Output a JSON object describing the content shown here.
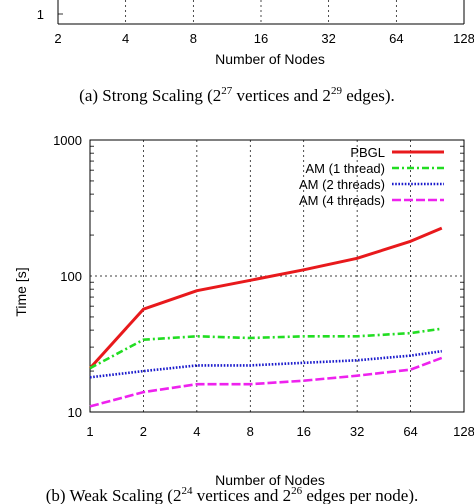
{
  "top_panel": {
    "y_tick_label": "1",
    "x_ticks": [
      "2",
      "4",
      "8",
      "16",
      "32",
      "64",
      "128"
    ],
    "xlabel": "Number of Nodes",
    "caption": {
      "prefix": "(a) Strong Scaling (2",
      "sup1": "27",
      "mid": " vertices and 2",
      "sup2": "29",
      "suffix": " edges)."
    }
  },
  "chart_data": {
    "type": "line",
    "title": "",
    "xlabel": "Number of Nodes",
    "ylabel": "Time [s]",
    "x_scale": "log2",
    "y_scale": "log10",
    "x_ticks": [
      1,
      2,
      4,
      8,
      16,
      32,
      64,
      128
    ],
    "x_tick_labels": [
      "1",
      "2",
      "4",
      "8",
      "16",
      "32",
      "64",
      "128"
    ],
    "y_ticks": [
      10,
      100,
      1000
    ],
    "y_tick_labels": [
      "10",
      "100",
      "1000"
    ],
    "xlim": [
      1,
      128
    ],
    "ylim": [
      10,
      1000
    ],
    "grid": true,
    "legend_position": "top-right",
    "x": [
      1,
      2,
      4,
      8,
      16,
      32,
      64,
      96
    ],
    "series": [
      {
        "name": "PBGL",
        "color": "#e8191c",
        "dash": "solid",
        "values": [
          21,
          57,
          78,
          93,
          111,
          135,
          180,
          225
        ]
      },
      {
        "name": "AM (1 thread)",
        "color": "#22dd22",
        "dash": "dashdot",
        "values": [
          21,
          34,
          36,
          35,
          36,
          36,
          38,
          41
        ]
      },
      {
        "name": "AM (2 threads)",
        "color": "#1a1acc",
        "dash": "dotted",
        "values": [
          18,
          20,
          22,
          22,
          23,
          24,
          26,
          28
        ]
      },
      {
        "name": "AM (4 threads)",
        "color": "#ee22ee",
        "dash": "dashed",
        "values": [
          11,
          14,
          16,
          16,
          17,
          18.5,
          20.5,
          25
        ]
      }
    ]
  },
  "caption_b": {
    "prefix": "(b) Weak Scaling (2",
    "sup1": "24",
    "mid": " vertices and 2",
    "sup2": "26",
    "suffix": " edges per node)."
  }
}
